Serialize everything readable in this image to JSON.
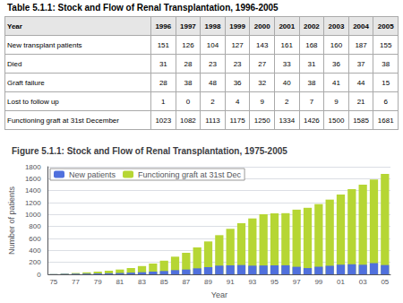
{
  "table": {
    "title": "Table 5.1.1: Stock and Flow of Renal Transplantation, 1996-2005",
    "columns": [
      "Year",
      "1996",
      "1997",
      "1998",
      "1999",
      "2000",
      "2001",
      "2002",
      "2003",
      "2004",
      "2005"
    ],
    "rows": [
      {
        "label": "New transplant patients",
        "values": [
          151,
          126,
          104,
          127,
          143,
          161,
          168,
          160,
          187,
          155
        ]
      },
      {
        "label": "Died",
        "values": [
          31,
          28,
          23,
          23,
          27,
          33,
          31,
          36,
          37,
          38
        ]
      },
      {
        "label": "Graft failure",
        "values": [
          28,
          38,
          48,
          36,
          32,
          40,
          38,
          41,
          44,
          15
        ]
      },
      {
        "label": "Lost to follow up",
        "values": [
          1,
          0,
          2,
          4,
          9,
          2,
          7,
          9,
          21,
          6
        ]
      },
      {
        "label": "Functioning graft at 31st December",
        "values": [
          1023,
          1082,
          1113,
          1175,
          1250,
          1334,
          1426,
          1500,
          1585,
          1681
        ]
      }
    ]
  },
  "chart_data": {
    "type": "bar",
    "title": "Figure 5.1.1: Stock and Flow of Renal Transplantation, 1975-2005",
    "xlabel": "Year",
    "ylabel": "Number of patients",
    "categories": [
      "75",
      null,
      "77",
      null,
      "79",
      null,
      "81",
      null,
      "83",
      null,
      "85",
      null,
      "87",
      null,
      "89",
      null,
      "91",
      null,
      "93",
      null,
      "95",
      null,
      "97",
      null,
      "99",
      null,
      "01",
      null,
      "03",
      null,
      "05"
    ],
    "series": [
      {
        "name": "New patients",
        "values": [
          5,
          8,
          10,
          12,
          15,
          18,
          22,
          28,
          35,
          45,
          55,
          70,
          80,
          100,
          120,
          145,
          150,
          155,
          145,
          148,
          150,
          151,
          126,
          104,
          127,
          143,
          161,
          168,
          160,
          187,
          155
        ]
      },
      {
        "name": "Functioning graft at 31st Dec",
        "values": [
          5,
          12,
          22,
          33,
          45,
          60,
          80,
          105,
          138,
          180,
          228,
          295,
          360,
          450,
          550,
          655,
          760,
          855,
          935,
          1005,
          1020,
          1023,
          1082,
          1113,
          1175,
          1250,
          1334,
          1426,
          1500,
          1585,
          1681
        ]
      }
    ],
    "ylim": [
      0,
      1800
    ],
    "yticks": [
      0,
      200,
      400,
      600,
      800,
      1000,
      1200,
      1400,
      1600,
      1800
    ],
    "grid": true,
    "legend": "upper left"
  }
}
